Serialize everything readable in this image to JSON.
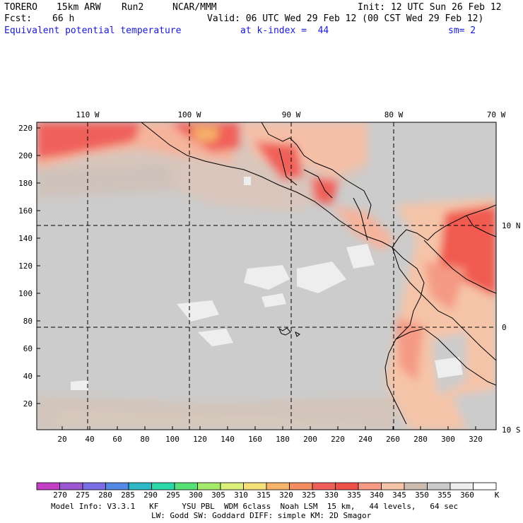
{
  "header": {
    "model": "TORERO",
    "resolution": "15km ARW",
    "run": "Run2",
    "org": "NCAR/MMM",
    "init": "Init: 12 UTC Sun 26 Feb 12",
    "fcst_label": "Fcst:",
    "fcst_value": "66 h",
    "valid": "Valid: 06 UTC Wed 29 Feb 12 (00 CST Wed 29 Feb 12)",
    "field": "Equivalent potential temperature",
    "level": "at k-index =  44",
    "smoothing": "sm= 2"
  },
  "map": {
    "lon_labels": [
      "110 W",
      "100 W",
      "90 W",
      "80 W",
      "70 W"
    ],
    "lat_labels": [
      "10 N",
      "0",
      "10 S"
    ],
    "x_ticks": [
      "20",
      "40",
      "60",
      "80",
      "100",
      "120",
      "140",
      "160",
      "180",
      "200",
      "220",
      "240",
      "260",
      "280",
      "300",
      "320"
    ],
    "y_ticks": [
      "20",
      "40",
      "60",
      "80",
      "100",
      "120",
      "140",
      "160",
      "180",
      "200",
      "220"
    ]
  },
  "colorbar": {
    "labels": [
      "270",
      "275",
      "280",
      "285",
      "290",
      "295",
      "300",
      "305",
      "310",
      "315",
      "320",
      "325",
      "330",
      "335",
      "340",
      "345",
      "350",
      "355",
      "360"
    ],
    "unit": "K",
    "colors": [
      "#c23fc4",
      "#9c57d2",
      "#7a6ee6",
      "#5589e6",
      "#2fb8c8",
      "#2dd8a8",
      "#58e078",
      "#a6ea6c",
      "#dcf07c",
      "#f5e07a",
      "#f5b46a",
      "#f58c62",
      "#f0605a",
      "#f0504a",
      "#f59a84",
      "#f5c4a8",
      "#cdbcb0",
      "#cccccc",
      "#eeeeee",
      "#ffffff"
    ]
  },
  "footer": {
    "line1": "Model Info: V3.3.1   KF     YSU PBL  WDM 6class  Noah LSM  15 km,   44 levels,   64 sec",
    "line2": "LW: Godd SW: Goddard DIFF: simple KM: 2D Smagor"
  }
}
